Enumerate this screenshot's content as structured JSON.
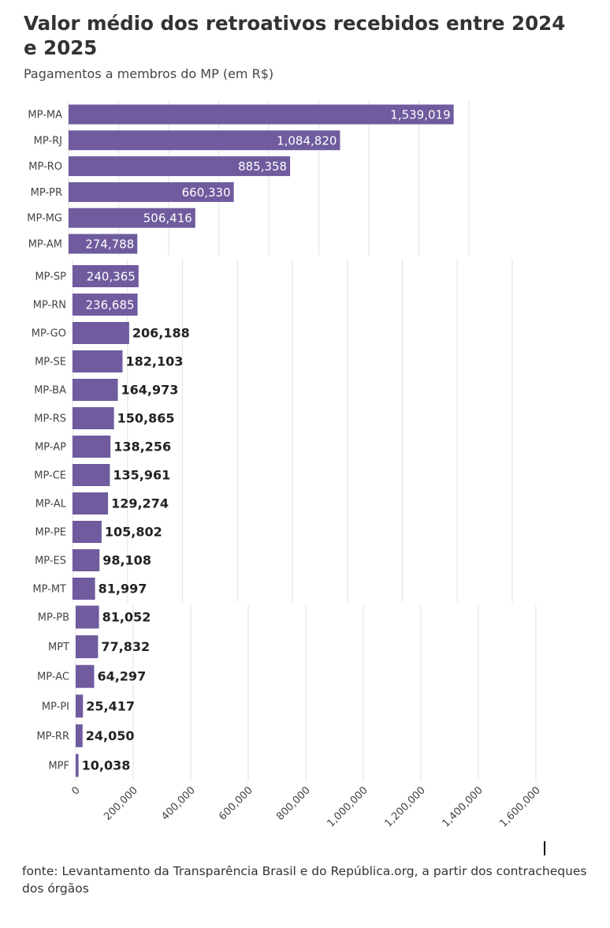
{
  "title": "Valor médio dos retroativos recebidos entre 2024 e 2025",
  "subtitle": "Pagamentos a membros do MP (em R$)",
  "source": "fonte: Levantamento da Transparência Brasil e do República.org, a partir dos contracheques dos órgãos",
  "colors": {
    "bar": "#6f5b9e",
    "grid": "#e6e6e6",
    "label_dark": "#222222",
    "label_light": "#ffffff"
  },
  "chart_data": {
    "type": "bar",
    "orientation": "horizontal",
    "title": "Valor médio dos retroativos recebidos entre 2024 e 2025",
    "subtitle": "Pagamentos a membros do MP (em R$)",
    "xlabel": "",
    "ylabel": "",
    "xlim": [
      0,
      1600000
    ],
    "x_ticks": [
      0,
      200000,
      400000,
      600000,
      800000,
      1000000,
      1200000,
      1400000,
      1600000
    ],
    "x_tick_labels": [
      "0",
      "200,000",
      "400,000",
      "600,000",
      "800,000",
      "1,000,000",
      "1,200,000",
      "1,400,000",
      "1,600,000"
    ],
    "grid": true,
    "panels": [
      {
        "categories": [
          "MP-MA",
          "MP-RJ",
          "MP-RO",
          "MP-PR",
          "MP-MG",
          "MP-AM"
        ],
        "values": [
          1539019,
          1084820,
          885358,
          660330,
          506416,
          274788
        ],
        "labels": [
          "1,539,019",
          "1,084,820",
          "885,358",
          "660,330",
          "506,416",
          "274,788"
        ]
      },
      {
        "categories": [
          "MP-SP",
          "MP-RN",
          "MP-GO",
          "MP-SE",
          "MP-BA",
          "MP-RS",
          "MP-AP",
          "MP-CE",
          "MP-AL",
          "MP-PE",
          "MP-ES",
          "MP-MT"
        ],
        "values": [
          240365,
          236685,
          206188,
          182103,
          164973,
          150865,
          138256,
          135961,
          129274,
          105802,
          98108,
          81997
        ],
        "labels": [
          "240,365",
          "236,685",
          "206,188",
          "182,103",
          "164,973",
          "150,865",
          "138,256",
          "135,961",
          "129,274",
          "105,802",
          "98,108",
          "81,997"
        ]
      },
      {
        "categories": [
          "MP-PB",
          "MPT",
          "MP-AC",
          "MP-PI",
          "MP-RR",
          "MPF"
        ],
        "values": [
          81052,
          77832,
          64297,
          25417,
          24050,
          10038
        ],
        "labels": [
          "81,052",
          "77,832",
          "64,297",
          "25,417",
          "24,050",
          "10,038"
        ]
      }
    ]
  }
}
